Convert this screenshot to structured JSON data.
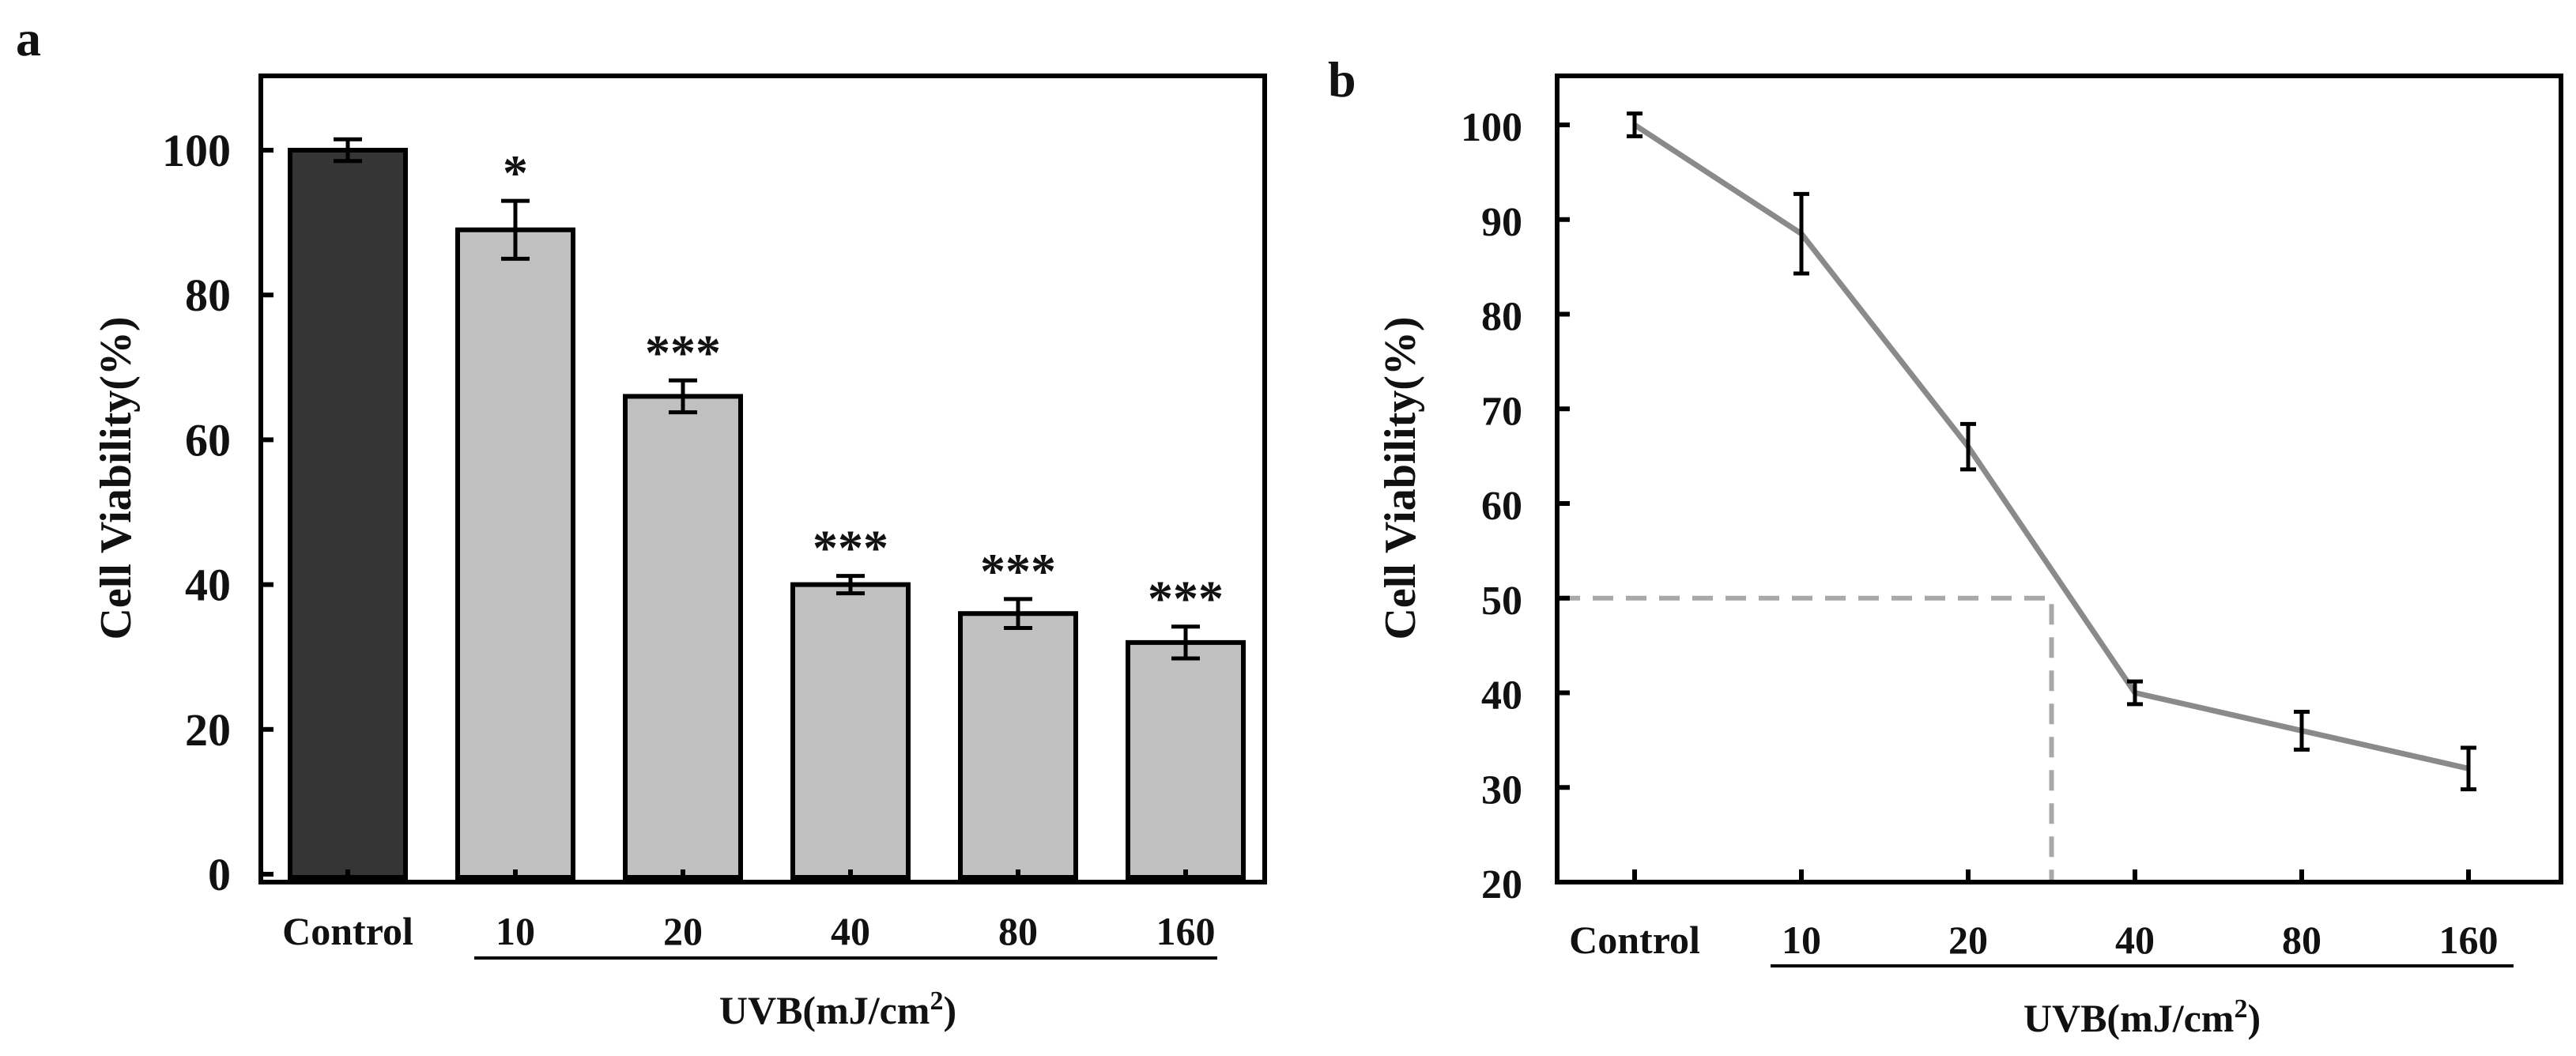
{
  "panel_labels": {
    "a": "a",
    "b": "b"
  },
  "colors": {
    "axis": "#000000",
    "control_bar": "#353535",
    "uvb_bar": "#c0c0c0",
    "line": "#8a8a8a",
    "dashed": "#a8a8a8",
    "text": "#111111"
  },
  "chart_data": [
    {
      "type": "bar",
      "panel": "a",
      "title": "",
      "ylabel": "Cell Viability(%)",
      "xlabel": "UVB(mJ/cm2)",
      "xlabel_main": "UVB(mJ/cm",
      "xlabel_sup": "2",
      "xlabel_close": ")",
      "categories": [
        "Control",
        "10",
        "20",
        "40",
        "80",
        "160"
      ],
      "values": [
        100,
        89,
        66,
        40,
        36,
        32
      ],
      "errors": [
        1.5,
        4.0,
        2.2,
        1.2,
        2.0,
        2.2
      ],
      "significance": [
        "",
        "*",
        "***",
        "***",
        "***",
        "***"
      ],
      "ylim": [
        0,
        110
      ],
      "yticks": [
        0,
        20,
        40,
        60,
        80,
        100
      ],
      "ytick_labels": [
        "0",
        "20",
        "40",
        "60",
        "80",
        "100"
      ],
      "underlined_categories": [
        "10",
        "20",
        "40",
        "80",
        "160"
      ]
    },
    {
      "type": "line",
      "panel": "b",
      "title": "",
      "ylabel": "Cell Viability(%)",
      "xlabel": "UVB(mJ/cm2)",
      "xlabel_main": "UVB(mJ/cm",
      "xlabel_sup": "2",
      "xlabel_close": ")",
      "categories": [
        "Control",
        "10",
        "20",
        "40",
        "80",
        "160"
      ],
      "values": [
        100,
        88.5,
        66,
        40,
        36,
        32
      ],
      "errors": [
        1.2,
        4.2,
        2.4,
        1.2,
        2.0,
        2.2
      ],
      "ylim": [
        20,
        105
      ],
      "yticks": [
        20,
        30,
        40,
        50,
        60,
        70,
        80,
        90,
        100
      ],
      "ytick_labels": [
        "20",
        "30",
        "40",
        "50",
        "60",
        "70",
        "80",
        "90",
        "100"
      ],
      "ic50_marker": {
        "y": 50,
        "x_position": 2.5
      },
      "underlined_categories": [
        "10",
        "20",
        "40",
        "80",
        "160"
      ]
    }
  ]
}
